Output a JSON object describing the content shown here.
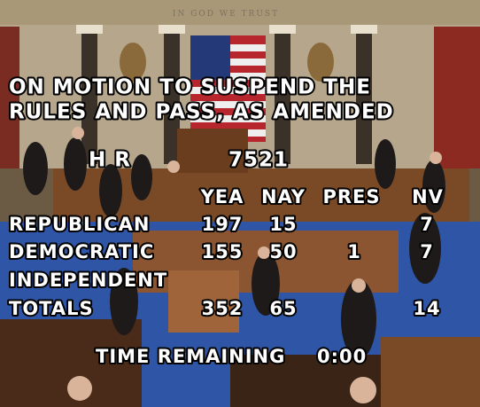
{
  "motto": "IN GOD WE TRUST",
  "motion": [
    "ON MOTION TO SUSPEND THE",
    "RULES AND PASS, AS AMENDED"
  ],
  "bill": {
    "label": "H R",
    "number": "7521"
  },
  "columns": [
    "YEA",
    "NAY",
    "PRES",
    "NV"
  ],
  "rows": [
    {
      "party": "REPUBLICAN",
      "yea": 197,
      "nay": 15,
      "nv": 7
    },
    {
      "party": "DEMOCRATIC",
      "yea": 155,
      "nay": 50,
      "pres": 1,
      "nv": 7
    },
    {
      "party": "INDEPENDENT"
    },
    {
      "party": "TOTALS",
      "yea": 352,
      "nay": 65,
      "nv": 14
    }
  ],
  "time": {
    "label": "TIME REMAINING",
    "value": "0:00"
  }
}
